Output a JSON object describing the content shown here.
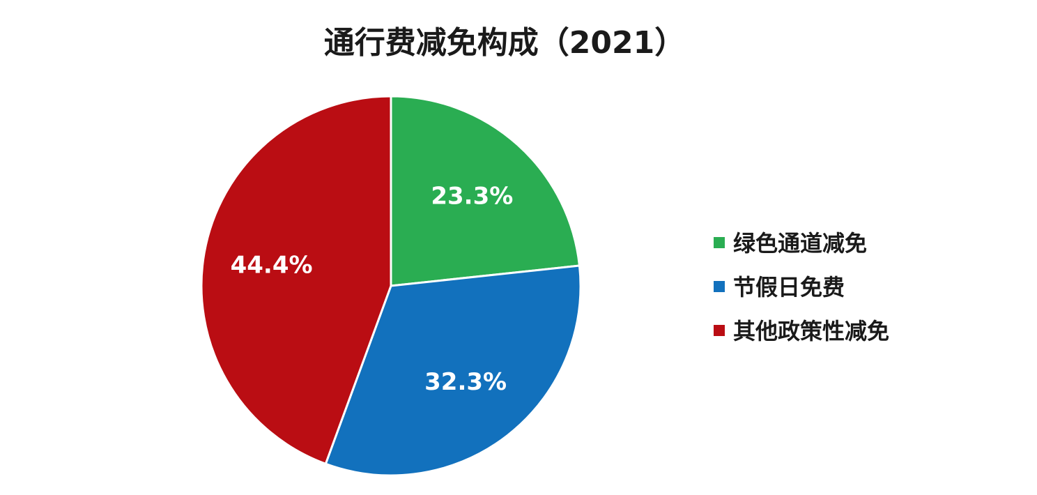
{
  "chart_data": {
    "type": "pie",
    "title": "通行费减免构成（2021）",
    "slices": [
      {
        "name": "绿色通道减免",
        "value": 23.3,
        "label": "23.3%",
        "color": "#2aad52"
      },
      {
        "name": "节假日免费",
        "value": 32.3,
        "label": "32.3%",
        "color": "#1271bd"
      },
      {
        "name": "其他政策性减免",
        "value": 44.4,
        "label": "44.4%",
        "color": "#ba0d13"
      }
    ],
    "unit": "%",
    "legend_position": "right"
  }
}
